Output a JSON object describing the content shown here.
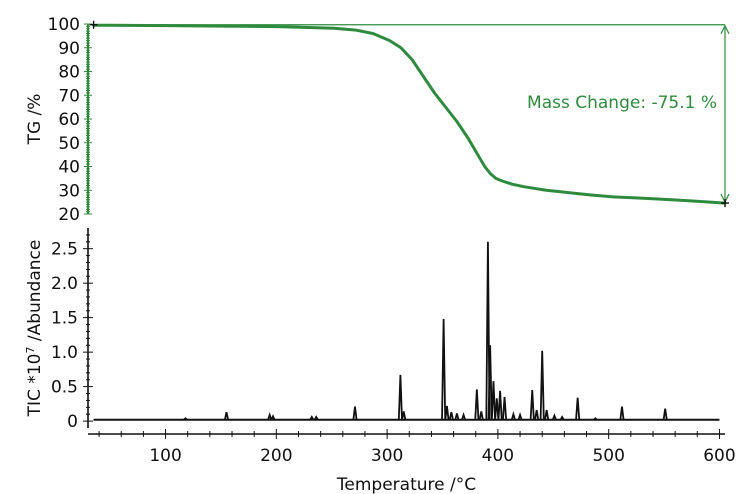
{
  "colors": {
    "tg": "#2e8b3d",
    "tic": "#111111",
    "axis": "#111111",
    "background": "#ffffff"
  },
  "chart_data": [
    {
      "type": "line",
      "title": "",
      "xlabel": "",
      "ylabel": "TG /%",
      "xlim": [
        30,
        600
      ],
      "ylim": [
        20,
        100
      ],
      "y_ticks": [
        20,
        30,
        40,
        50,
        60,
        70,
        80,
        90,
        100
      ],
      "y_tick_labels": [
        "20",
        "30",
        "40",
        "50",
        "60",
        "70",
        "80",
        "90",
        "100"
      ],
      "grid": false,
      "legend": "none",
      "series": [
        {
          "color": "#2e8b3d",
          "x": [
            35,
            50,
            100,
            150,
            200,
            250,
            270,
            285,
            300,
            310,
            320,
            330,
            340,
            350,
            360,
            370,
            375,
            380,
            385,
            390,
            395,
            400,
            410,
            420,
            440,
            460,
            480,
            500,
            520,
            540,
            560,
            580,
            600
          ],
          "values": [
            99.5,
            99.5,
            99.3,
            99.1,
            98.9,
            98.2,
            97.4,
            96.0,
            93.0,
            90.0,
            85.0,
            78.0,
            71.0,
            65.0,
            59.0,
            52.0,
            48.0,
            44.0,
            40.0,
            37.0,
            35.0,
            34.0,
            32.5,
            31.5,
            30.0,
            29.0,
            28.0,
            27.2,
            26.8,
            26.3,
            25.8,
            25.2,
            24.6
          ]
        }
      ],
      "annotations": [
        {
          "text": "Mass Change: -75.1 %",
          "x": 600,
          "y_from": 99.7,
          "y_to": 24.6,
          "from_x": 35
        }
      ]
    },
    {
      "type": "line",
      "title": "",
      "xlabel": "Temperature /°C",
      "ylabel": "TIC *10",
      "ylabel_exponent": "7",
      "ylabel_suffix": " /Abundance",
      "xlim": [
        30,
        605
      ],
      "ylim": [
        -0.1,
        2.8
      ],
      "x_ticks": [
        100,
        200,
        300,
        400,
        500,
        600
      ],
      "x_tick_labels": [
        "100",
        "200",
        "300",
        "400",
        "500",
        "600"
      ],
      "y_ticks": [
        0,
        0.5,
        1.0,
        1.5,
        2.0,
        2.5
      ],
      "y_tick_labels": [
        "0",
        "0.5",
        "1.0",
        "1.5",
        "2.0",
        "2.5"
      ],
      "grid": false,
      "legend": "none",
      "baseline": 0.02,
      "baseline_x": [
        35,
        600
      ],
      "series": [
        {
          "color": "#111111",
          "peaks": [
            {
              "x": 118,
              "y": 0.04
            },
            {
              "x": 155,
              "y": 0.13
            },
            {
              "x": 194,
              "y": 0.09
            },
            {
              "x": 197,
              "y": 0.07
            },
            {
              "x": 232,
              "y": 0.06
            },
            {
              "x": 236,
              "y": 0.06
            },
            {
              "x": 271,
              "y": 0.21
            },
            {
              "x": 312,
              "y": 0.67
            },
            {
              "x": 315,
              "y": 0.14
            },
            {
              "x": 351,
              "y": 1.48
            },
            {
              "x": 354,
              "y": 0.22
            },
            {
              "x": 358,
              "y": 0.13
            },
            {
              "x": 363,
              "y": 0.11
            },
            {
              "x": 369,
              "y": 0.09
            },
            {
              "x": 381,
              "y": 0.46
            },
            {
              "x": 385,
              "y": 0.14
            },
            {
              "x": 391,
              "y": 2.6
            },
            {
              "x": 393,
              "y": 1.1
            },
            {
              "x": 396,
              "y": 0.58
            },
            {
              "x": 399,
              "y": 0.33
            },
            {
              "x": 402,
              "y": 0.44
            },
            {
              "x": 406,
              "y": 0.35
            },
            {
              "x": 414,
              "y": 0.1
            },
            {
              "x": 420,
              "y": 0.09
            },
            {
              "x": 431,
              "y": 0.45
            },
            {
              "x": 435,
              "y": 0.16
            },
            {
              "x": 440,
              "y": 1.02
            },
            {
              "x": 444,
              "y": 0.16
            },
            {
              "x": 451,
              "y": 0.08
            },
            {
              "x": 458,
              "y": 0.06
            },
            {
              "x": 472,
              "y": 0.34
            },
            {
              "x": 488,
              "y": 0.04
            },
            {
              "x": 512,
              "y": 0.21
            },
            {
              "x": 551,
              "y": 0.18
            }
          ]
        }
      ]
    }
  ]
}
